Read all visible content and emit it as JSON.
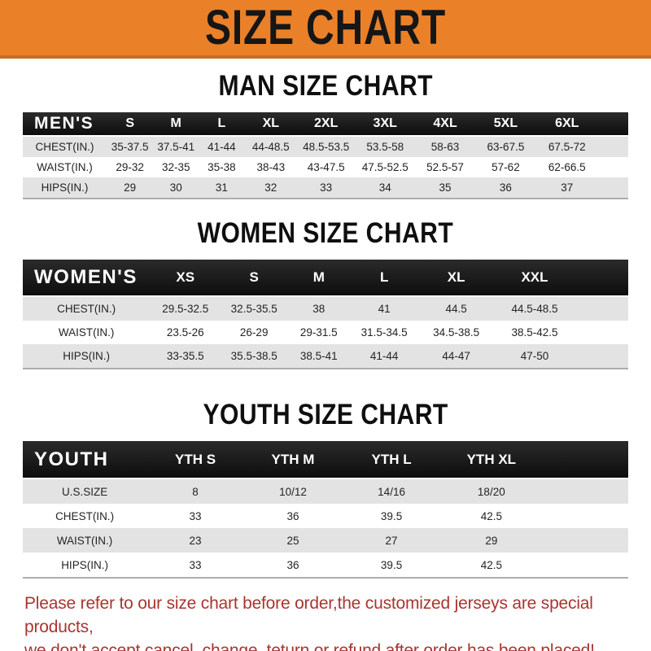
{
  "banner": {
    "title": "SIZE CHART"
  },
  "sections": {
    "men": {
      "heading": "MAN SIZE CHART",
      "corner_label": "MEN'S",
      "columns": [
        "S",
        "M",
        "L",
        "XL",
        "2XL",
        "3XL",
        "4XL",
        "5XL",
        "6XL"
      ],
      "rows": [
        {
          "label": "CHEST(IN.)",
          "values": [
            "35-37.5",
            "37.5-41",
            "41-44",
            "44-48.5",
            "48.5-53.5",
            "53.5-58",
            "58-63",
            "63-67.5",
            "67.5-72"
          ]
        },
        {
          "label": "WAIST(IN.)",
          "values": [
            "29-32",
            "32-35",
            "35-38",
            "38-43",
            "43-47.5",
            "47.5-52.5",
            "52.5-57",
            "57-62",
            "62-66.5"
          ]
        },
        {
          "label": "HIPS(IN.)",
          "values": [
            "29",
            "30",
            "31",
            "32",
            "33",
            "34",
            "35",
            "36",
            "37"
          ]
        }
      ]
    },
    "women": {
      "heading": "WOMEN SIZE CHART",
      "corner_label": "WOMEN'S",
      "columns": [
        "XS",
        "S",
        "M",
        "L",
        "XL",
        "XXL"
      ],
      "rows": [
        {
          "label": "CHEST(IN.)",
          "values": [
            "29.5-32.5",
            "32.5-35.5",
            "38",
            "41",
            "44.5",
            "44.5-48.5"
          ]
        },
        {
          "label": "WAIST(IN.)",
          "values": [
            "23.5-26",
            "26-29",
            "29-31.5",
            "31.5-34.5",
            "34.5-38.5",
            "38.5-42.5"
          ]
        },
        {
          "label": "HIPS(IN.)",
          "values": [
            "33-35.5",
            "35.5-38.5",
            "38.5-41",
            "41-44",
            "44-47",
            "47-50"
          ]
        }
      ]
    },
    "youth": {
      "heading": "YOUTH SIZE CHART",
      "corner_label": "YOUTH",
      "columns": [
        "YTH S",
        "YTH M",
        "YTH L",
        "YTH XL"
      ],
      "rows": [
        {
          "label": "U.S.SIZE",
          "values": [
            "8",
            "10/12",
            "14/16",
            "18/20"
          ]
        },
        {
          "label": "CHEST(IN.)",
          "values": [
            "33",
            "36",
            "39.5",
            "42.5"
          ]
        },
        {
          "label": "WAIST(IN.)",
          "values": [
            "23",
            "25",
            "27",
            "29"
          ]
        },
        {
          "label": "HIPS(IN.)",
          "values": [
            "33",
            "36",
            "39.5",
            "42.5"
          ]
        }
      ]
    }
  },
  "footer": {
    "line1": "Please refer to our size chart before order,the customized jerseys are special products,",
    "line2": "we don't accept cancel, change, teturn or refund after order has been placed!"
  },
  "colors": {
    "banner_orange": "#EA8028",
    "banner_orange_dark": "#C96C1E",
    "header_bar_black": "#151515",
    "row_gray": "#E3E3E3",
    "row_white": "#FFFFFF",
    "notice_red": "#A93530"
  }
}
